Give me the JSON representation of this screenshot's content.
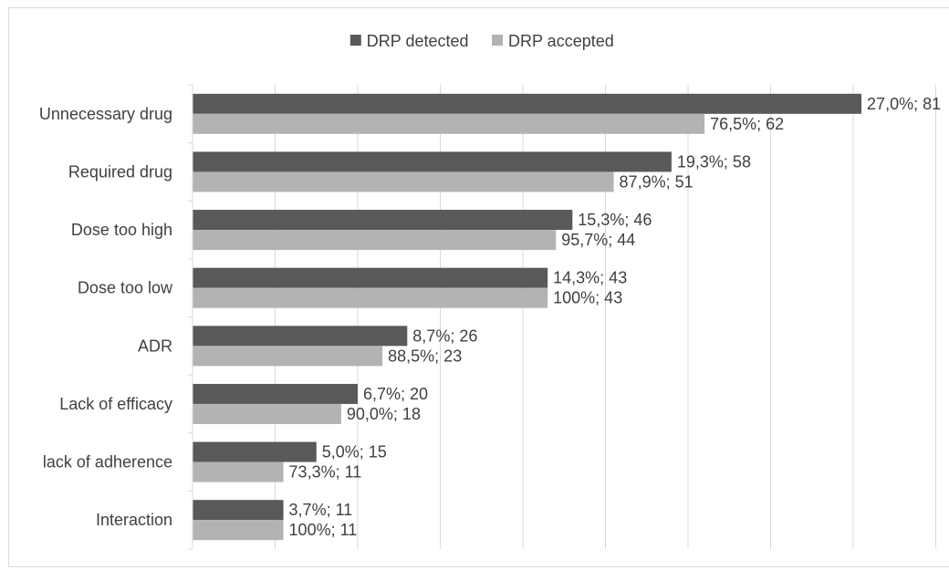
{
  "chart_data": {
    "type": "bar",
    "orientation": "horizontal",
    "categories": [
      "Unnecessary drug",
      "Required drug",
      "Dose too high",
      "Dose too low",
      "ADR",
      "Lack of efficacy",
      "lack of adherence",
      "Interaction"
    ],
    "series": [
      {
        "name": "DRP detected",
        "color": "#595959",
        "values": [
          81,
          58,
          46,
          43,
          26,
          20,
          15,
          11
        ],
        "labels": [
          "27,0%; 81",
          "19,3%; 58",
          "15,3%; 46",
          "14,3%; 43",
          "8,7%; 26",
          "6,7%; 20",
          "5,0%; 15",
          "3,7%; 11"
        ]
      },
      {
        "name": "DRP accepted",
        "color": "#b3b3b3",
        "values": [
          62,
          51,
          44,
          43,
          23,
          18,
          11,
          11
        ],
        "labels": [
          "76,5%; 62",
          "87,9%; 51",
          "95,7%; 44",
          "100%; 43",
          "88,5%; 23",
          "90,0%; 18",
          "73,3%; 11",
          "100%; 11"
        ]
      }
    ],
    "xlim": [
      0,
      90
    ],
    "x_grid_step": 10,
    "grid": true,
    "legend_position": "top-center",
    "title": "",
    "xlabel": "",
    "ylabel": ""
  }
}
